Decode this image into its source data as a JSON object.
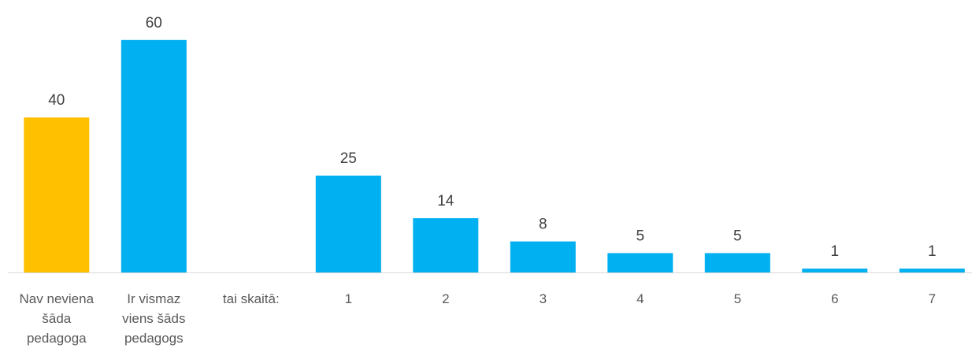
{
  "chart_data": {
    "type": "bar",
    "title": "",
    "xlabel": "",
    "ylabel": "",
    "ylim": [
      0,
      62
    ],
    "grid": false,
    "legend": "none",
    "categories": [
      "Nav neviena šāda pedagoga",
      "Ir vismaz viens šāds pedagogs",
      "tai skaitā:",
      "1",
      "2",
      "3",
      "4",
      "5",
      "6",
      "7"
    ],
    "category_lines": [
      [
        "Nav neviena",
        "šāda",
        "pedagoga"
      ],
      [
        "Ir vismaz",
        "viens šāds",
        "pedagogs"
      ],
      [
        "tai skaitā:"
      ],
      [
        "1"
      ],
      [
        "2"
      ],
      [
        "3"
      ],
      [
        "4"
      ],
      [
        "5"
      ],
      [
        "6"
      ],
      [
        "7"
      ]
    ],
    "values": [
      40,
      60,
      null,
      25,
      14,
      8,
      5,
      5,
      1,
      1
    ],
    "bar_colors": [
      "#FFC000",
      "#00B0F0",
      null,
      "#00B0F0",
      "#00B0F0",
      "#00B0F0",
      "#00B0F0",
      "#00B0F0",
      "#00B0F0",
      "#00B0F0"
    ],
    "axis_color": "#D9D9D9"
  }
}
